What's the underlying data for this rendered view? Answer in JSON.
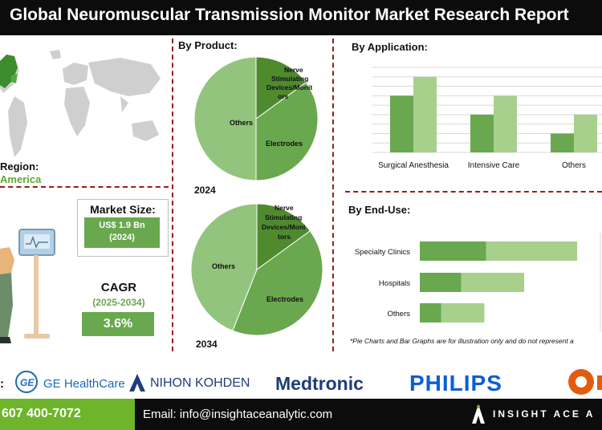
{
  "header": {
    "title": "Global Neuromuscular Transmission Monitor Market Research Report"
  },
  "region": {
    "label": "Region:",
    "value": "America"
  },
  "market_size": {
    "label": "Market Size:",
    "value": "US$ 1.9 Bn",
    "year": "(2024)"
  },
  "cagr": {
    "label": "CAGR",
    "period": "(2025-2034)",
    "value": "3.6%"
  },
  "product": {
    "title": "By Product:"
  },
  "application": {
    "title": "By Application:"
  },
  "end_use": {
    "title": "By End-Use:"
  },
  "disclaimer": "*Pie Charts and Bar Graphs are for illustration only and do not represent a",
  "logos": [
    "GE HealthCare",
    "NIHON KOHDEN",
    "Medtronic",
    "PHILIPS"
  ],
  "footer": {
    "phone": "607 400-7072",
    "email": "Email: info@insightaceanalytic.com",
    "brand": "INSIGHT ACE A"
  },
  "colors": {
    "dark_green": "#6aa84f",
    "light_green": "#a8d08d",
    "mid_green": "#93c47d",
    "pie_dark": "#4f8a2f",
    "accent_red": "#9b1b1b",
    "footer_green": "#6fb52c",
    "ge_blue": "#1c6ab4",
    "nk_blue": "#1f3d7a",
    "philips_blue": "#0b5ed7"
  },
  "icons": [
    "world-map-icon",
    "person-monitor-icon",
    "ge-logo-icon",
    "nihon-kohden-logo-icon",
    "insight-ace-logo-icon",
    "partial-logo-icon"
  ],
  "chart_data": [
    {
      "type": "pie",
      "year_label": "2024",
      "labels": [
        "Nerve Stimulating Devices/Monitors",
        "Electrodes",
        "Others"
      ],
      "values": [
        15,
        35,
        50
      ]
    },
    {
      "type": "pie",
      "year_label": "2034",
      "labels": [
        "Nerve Stimulating Devices/Monitors",
        "Electrodes",
        "Others"
      ],
      "values": [
        15,
        41,
        44
      ]
    },
    {
      "type": "bar",
      "categories": [
        "Surgical Anesthesia",
        "Intensive Care",
        "Others"
      ],
      "series": [
        {
          "values": [
            3,
            2,
            1
          ]
        },
        {
          "values": [
            4,
            3,
            2
          ]
        }
      ],
      "grid": true
    },
    {
      "type": "bar",
      "orientation": "horizontal",
      "stacked": true,
      "categories": [
        "Specialty Clinics",
        "Hospitals",
        "Others"
      ],
      "series": [
        {
          "values": [
            4,
            2.5,
            1.3
          ]
        },
        {
          "values": [
            5.5,
            3.8,
            2.6
          ]
        }
      ]
    }
  ]
}
